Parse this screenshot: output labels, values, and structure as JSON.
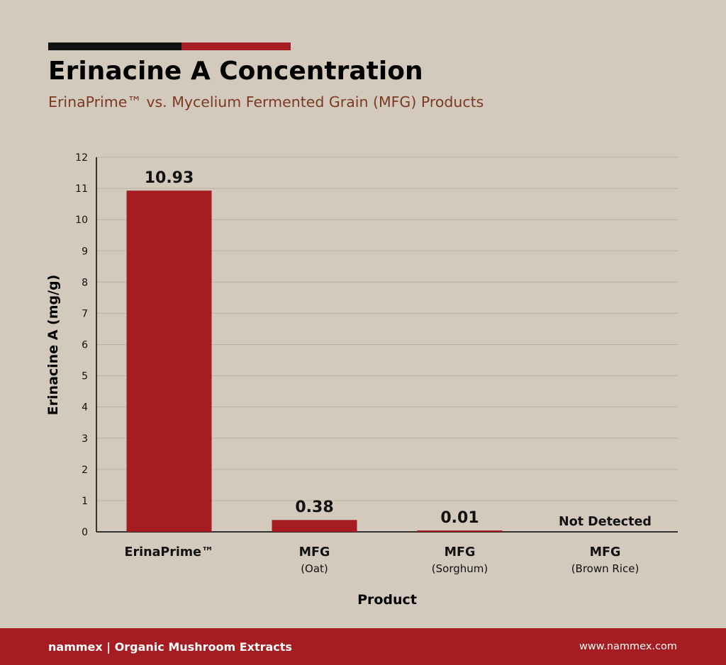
{
  "header": {
    "title": "Erinacine A Concentration",
    "subtitle": "ErinaPrime™ vs. Mycelium Fermented Grain (MFG) Products"
  },
  "colors": {
    "background": "#d3c9bd",
    "bar": "#a51c22",
    "accent_black": "#111111",
    "accent_red": "#a51c22",
    "grid": "#bdb2a6",
    "subtitle": "#7a3a24"
  },
  "chart_data": {
    "type": "bar",
    "title": "Erinacine A Concentration",
    "subtitle": "ErinaPrime™ vs. Mycelium Fermented Grain (MFG) Products",
    "xlabel": "Product",
    "ylabel": "Erinacine A (mg/g)",
    "ylim": [
      0,
      12
    ],
    "yticks": [
      "0",
      "1",
      "2",
      "3",
      "4",
      "5",
      "6",
      "7",
      "8",
      "9",
      "10",
      "11",
      "12"
    ],
    "grid": true,
    "categories": [
      {
        "name": "ErinaPrime™",
        "sub": ""
      },
      {
        "name": "MFG",
        "sub": "(Oat)"
      },
      {
        "name": "MFG",
        "sub": "(Sorghum)"
      },
      {
        "name": "MFG",
        "sub": "(Brown Rice)"
      }
    ],
    "values": [
      10.93,
      0.38,
      0.01,
      0
    ],
    "data_labels": [
      "10.93",
      "0.38",
      "0.01",
      "Not Detected"
    ]
  },
  "footer": {
    "brand": "nammex | Organic Mushroom Extracts",
    "url": "www.nammex.com"
  }
}
